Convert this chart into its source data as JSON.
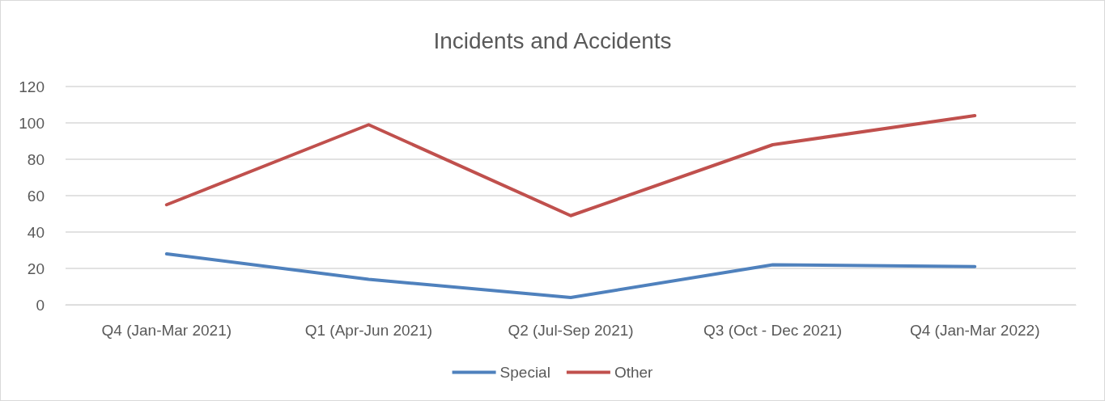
{
  "chart_data": {
    "type": "line",
    "title": "Incidents and Accidents",
    "categories": [
      "Q4 (Jan-Mar 2021)",
      "Q1 (Apr-Jun 2021)",
      "Q2 (Jul-Sep 2021)",
      "Q3 (Oct - Dec 2021)",
      "Q4 (Jan-Mar 2022)"
    ],
    "series": [
      {
        "name": "Special",
        "color": "#4f81bd",
        "values": [
          28,
          14,
          4,
          22,
          21
        ]
      },
      {
        "name": "Other",
        "color": "#c0504d",
        "values": [
          55,
          99,
          49,
          88,
          104
        ]
      }
    ],
    "ylim": [
      0,
      120
    ],
    "yticks": [
      0,
      20,
      40,
      60,
      80,
      100,
      120
    ],
    "grid": "y",
    "legend": "bottom",
    "marker": "none",
    "line_style": "solid"
  }
}
